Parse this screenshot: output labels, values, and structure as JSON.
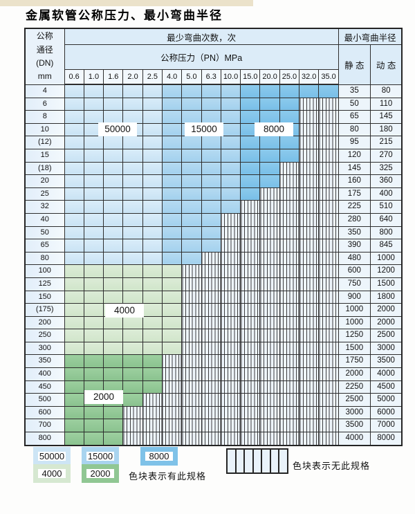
{
  "page": {
    "title": "金属软管公称压力、最小弯曲半径"
  },
  "table": {
    "header": {
      "dn_lines": [
        "公称",
        "通径",
        "(DN)",
        "mm"
      ],
      "bend_times": "最少弯曲次数，次",
      "min_radius": "最小弯曲半径",
      "pressure": "公称压力（PN）MPa",
      "static": "静 态",
      "dynamic": "动 态",
      "pressures": [
        "0.6",
        "1.0",
        "1.6",
        "2.0",
        "2.5",
        "4.0",
        "5.0",
        "6.3",
        "10.0",
        "15.0",
        "20.0",
        "25.0",
        "32.0",
        "35.0"
      ]
    },
    "rows": [
      {
        "dn": "4",
        "band": "blue",
        "spec_until_col": 14,
        "static": "35",
        "dynamic": "80"
      },
      {
        "dn": "6",
        "band": "blue",
        "spec_until_col": 12,
        "static": "50",
        "dynamic": "110"
      },
      {
        "dn": "8",
        "band": "blue",
        "spec_until_col": 12,
        "static": "65",
        "dynamic": "145"
      },
      {
        "dn": "10",
        "band": "blue",
        "spec_until_col": 12,
        "static": "80",
        "dynamic": "180"
      },
      {
        "dn": "(12)",
        "band": "blue",
        "spec_until_col": 12,
        "static": "95",
        "dynamic": "215"
      },
      {
        "dn": "15",
        "band": "blue",
        "spec_until_col": 12,
        "static": "120",
        "dynamic": "270"
      },
      {
        "dn": "(18)",
        "band": "blue",
        "spec_until_col": 11,
        "static": "145",
        "dynamic": "325"
      },
      {
        "dn": "20",
        "band": "blue",
        "spec_until_col": 11,
        "static": "160",
        "dynamic": "360"
      },
      {
        "dn": "25",
        "band": "blue",
        "spec_until_col": 10,
        "static": "175",
        "dynamic": "400"
      },
      {
        "dn": "32",
        "band": "blue",
        "spec_until_col": 9,
        "static": "225",
        "dynamic": "510"
      },
      {
        "dn": "40",
        "band": "blue",
        "spec_until_col": 8,
        "static": "280",
        "dynamic": "640"
      },
      {
        "dn": "50",
        "band": "blue",
        "spec_until_col": 8,
        "static": "350",
        "dynamic": "800"
      },
      {
        "dn": "65",
        "band": "blue",
        "spec_until_col": 8,
        "static": "390",
        "dynamic": "845"
      },
      {
        "dn": "80",
        "band": "blue",
        "spec_until_col": 7,
        "static": "480",
        "dynamic": "1000"
      },
      {
        "dn": "100",
        "band": "g4000",
        "spec_until_col": 6,
        "static": "600",
        "dynamic": "1200"
      },
      {
        "dn": "125",
        "band": "g4000",
        "spec_until_col": 6,
        "static": "750",
        "dynamic": "1500"
      },
      {
        "dn": "150",
        "band": "g4000",
        "spec_until_col": 6,
        "static": "900",
        "dynamic": "1800"
      },
      {
        "dn": "(175)",
        "band": "g4000",
        "spec_until_col": 6,
        "static": "1000",
        "dynamic": "2000"
      },
      {
        "dn": "200",
        "band": "g4000",
        "spec_until_col": 6,
        "static": "1000",
        "dynamic": "2000"
      },
      {
        "dn": "250",
        "band": "g4000",
        "spec_until_col": 6,
        "static": "1250",
        "dynamic": "2500"
      },
      {
        "dn": "300",
        "band": "g4000",
        "spec_until_col": 6,
        "static": "1500",
        "dynamic": "3000"
      },
      {
        "dn": "350",
        "band": "g2000",
        "spec_until_col": 5,
        "static": "1750",
        "dynamic": "3500"
      },
      {
        "dn": "400",
        "band": "g2000",
        "spec_until_col": 5,
        "static": "2000",
        "dynamic": "4000"
      },
      {
        "dn": "450",
        "band": "g2000",
        "spec_until_col": 5,
        "static": "2250",
        "dynamic": "4500"
      },
      {
        "dn": "500",
        "band": "g2000",
        "spec_until_col": 4,
        "static": "2500",
        "dynamic": "5000"
      },
      {
        "dn": "600",
        "band": "g2000",
        "spec_until_col": 3,
        "static": "3000",
        "dynamic": "6000"
      },
      {
        "dn": "700",
        "band": "g2000",
        "spec_until_col": 3,
        "static": "3500",
        "dynamic": "7000"
      },
      {
        "dn": "800",
        "band": "g2000",
        "spec_until_col": 3,
        "static": "4000",
        "dynamic": "8000"
      }
    ]
  },
  "overlays": [
    {
      "text": "50000"
    },
    {
      "text": "15000"
    },
    {
      "text": "8000"
    },
    {
      "text": "4000"
    },
    {
      "text": "2000"
    }
  ],
  "legend": {
    "items": [
      {
        "label": "50000",
        "color": "#cde5f5"
      },
      {
        "label": "15000",
        "color": "#a9d4ef"
      },
      {
        "label": "8000",
        "color": "#7fc2e8"
      },
      {
        "label": "4000",
        "color": "#d6e8d1"
      },
      {
        "label": "2000",
        "color": "#90c793"
      }
    ],
    "note_has": "色块表示有此规格",
    "note_none": "色块表示无此规格"
  },
  "colors": {
    "blue_50000": "#d2e8f6",
    "blue_15000": "#abd6f0",
    "blue_8000": "#80c3e9",
    "green_4000": "#d7e9d2",
    "green_2000": "#92c795",
    "hatch_bg": "#eef5fb",
    "grid_line": "#2d2d2d",
    "header_bg": "#dcecf8"
  }
}
